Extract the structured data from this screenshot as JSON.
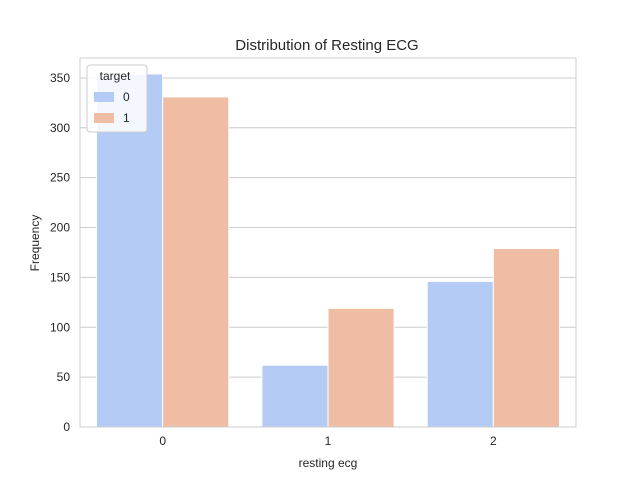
{
  "chart_data": {
    "type": "bar",
    "title": "Distribution of Resting ECG",
    "xlabel": "resting ecg",
    "ylabel": "Frequency",
    "categories": [
      "0",
      "1",
      "2"
    ],
    "ylim": [
      0,
      370
    ],
    "yticks": [
      0,
      50,
      100,
      150,
      200,
      250,
      300,
      350
    ],
    "grid": true,
    "legend": {
      "title": "target",
      "placement": "top-left"
    },
    "series": [
      {
        "name": "0",
        "values": [
          354,
          62,
          146
        ],
        "color": "#b4cbf5"
      },
      {
        "name": "1",
        "values": [
          331,
          119,
          179
        ],
        "color": "#eebda4"
      }
    ]
  }
}
